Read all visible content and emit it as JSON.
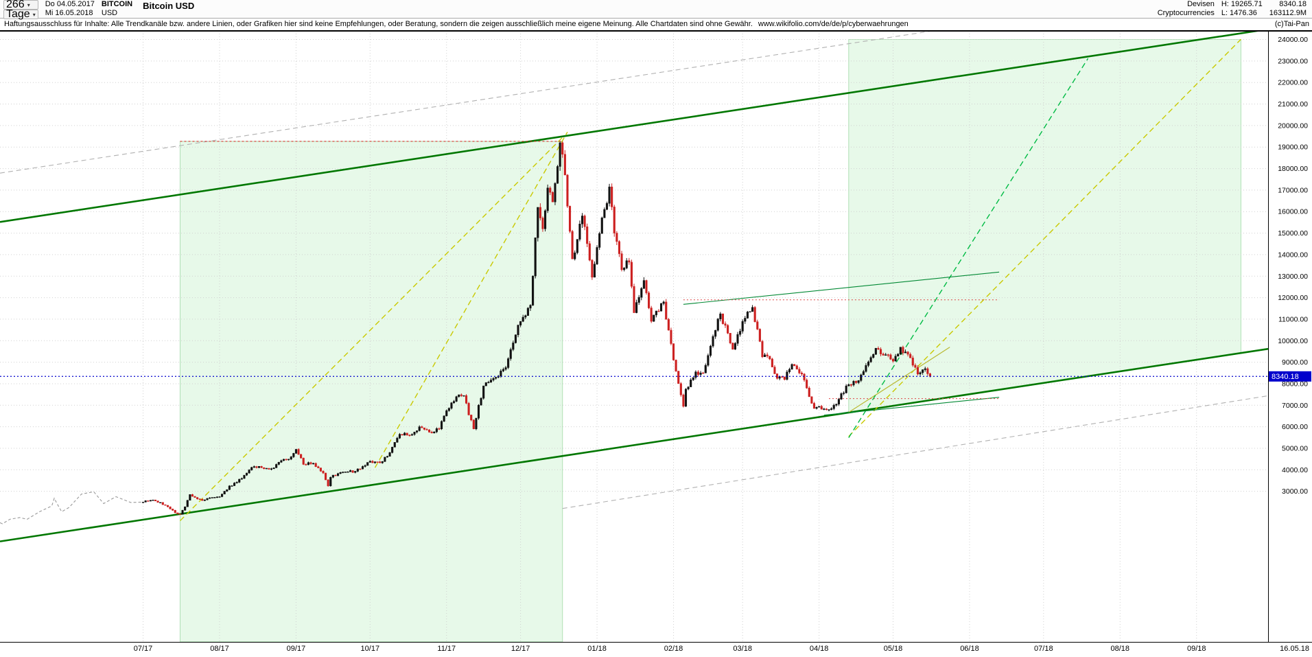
{
  "header": {
    "period_value": "266",
    "period_unit": "Tage",
    "date_from_label": "Do 04.05.2017",
    "date_to_label": "Mi 16.05.2018",
    "symbol": "BITCOIN",
    "currency": "USD",
    "title": "Bitcoin USD",
    "category_1": "Devisen",
    "category_2": "Cryptocurrencies",
    "high_label": "H: 19265.71",
    "low_label": "L: 1476.36",
    "last_price": "8340.18",
    "volume": "163112.9M"
  },
  "disclaimer": {
    "text": "Haftungsausschluss für Inhalte: Alle Trendkanäle bzw. andere Linien, oder Grafiken hier sind keine Empfehlungen, oder Beratung, sondern die zeigen ausschließlich meine eigene Meinung. Alle Chartdaten sind ohne Gewähr.",
    "link": "www.wikifolio.com/de/de/p/cyberwaehrungen",
    "copyright": "(c)Tai-Pan"
  },
  "footer": {
    "end_date": "16.05.18"
  },
  "chart_data": {
    "type": "candlestick",
    "title": "Bitcoin USD",
    "instrument": "BITCOIN USD",
    "period_start": "04.05.2017",
    "period_end": "16.05.2018",
    "high": 19265.71,
    "low": 1476.36,
    "last": 8340.18,
    "x_axis": {
      "total_days": 514,
      "candles_start_day": 58,
      "last_data_day": 377,
      "tick_labels": [
        "07/17",
        "08/17",
        "09/17",
        "10/17",
        "11/17",
        "12/17",
        "01/18",
        "02/18",
        "03/18",
        "04/18",
        "05/18",
        "06/18",
        "07/18",
        "08/18",
        "09/18"
      ],
      "tick_days": [
        58,
        89,
        120,
        150,
        181,
        211,
        242,
        273,
        301,
        332,
        362,
        393,
        423,
        454,
        485
      ]
    },
    "y_axis": {
      "min": -4000,
      "max": 24400,
      "label_min": 3000,
      "label_max": 24000,
      "step": 1000,
      "grid": true
    },
    "price_marker": {
      "value": 8340.18,
      "label": "8340.18",
      "color": "#0000cc"
    },
    "close_anchors": [
      [
        0,
        1540
      ],
      [
        1,
        1490
      ],
      [
        4,
        1700
      ],
      [
        8,
        1780
      ],
      [
        11,
        1700
      ],
      [
        16,
        2050
      ],
      [
        21,
        2320
      ],
      [
        22,
        2680
      ],
      [
        23,
        2450
      ],
      [
        25,
        2050
      ],
      [
        28,
        2250
      ],
      [
        33,
        2870
      ],
      [
        38,
        2980
      ],
      [
        42,
        2430
      ],
      [
        47,
        2750
      ],
      [
        53,
        2480
      ],
      [
        58,
        2500
      ],
      [
        62,
        2600
      ],
      [
        67,
        2350
      ],
      [
        71,
        2000
      ],
      [
        73,
        1930
      ],
      [
        75,
        2280
      ],
      [
        77,
        2850
      ],
      [
        82,
        2570
      ],
      [
        87,
        2720
      ],
      [
        89,
        2750
      ],
      [
        93,
        3250
      ],
      [
        96,
        3420
      ],
      [
        100,
        3850
      ],
      [
        103,
        4150
      ],
      [
        106,
        4100
      ],
      [
        110,
        4050
      ],
      [
        113,
        4350
      ],
      [
        118,
        4600
      ],
      [
        120,
        4950
      ],
      [
        123,
        4250
      ],
      [
        127,
        4300
      ],
      [
        131,
        3850
      ],
      [
        133,
        3250
      ],
      [
        134,
        3650
      ],
      [
        139,
        3900
      ],
      [
        144,
        3930
      ],
      [
        148,
        4200
      ],
      [
        150,
        4400
      ],
      [
        154,
        4320
      ],
      [
        158,
        4800
      ],
      [
        162,
        5650
      ],
      [
        166,
        5600
      ],
      [
        170,
        6000
      ],
      [
        174,
        5750
      ],
      [
        178,
        5900
      ],
      [
        181,
        6750
      ],
      [
        185,
        7400
      ],
      [
        188,
        7450
      ],
      [
        190,
        6550
      ],
      [
        192,
        5900
      ],
      [
        196,
        7900
      ],
      [
        200,
        8250
      ],
      [
        205,
        8750
      ],
      [
        208,
        9900
      ],
      [
        211,
        10900
      ],
      [
        215,
        11650
      ],
      [
        218,
        16200
      ],
      [
        220,
        15200
      ],
      [
        222,
        17100
      ],
      [
        224,
        16450
      ],
      [
        227,
        19200
      ],
      [
        229,
        17700
      ],
      [
        232,
        13800
      ],
      [
        236,
        15800
      ],
      [
        240,
        12950
      ],
      [
        243,
        14980
      ],
      [
        247,
        17150
      ],
      [
        249,
        15000
      ],
      [
        252,
        13300
      ],
      [
        255,
        13650
      ],
      [
        257,
        11300
      ],
      [
        261,
        12800
      ],
      [
        264,
        10900
      ],
      [
        269,
        11800
      ],
      [
        273,
        9100
      ],
      [
        277,
        6950
      ],
      [
        278,
        7750
      ],
      [
        282,
        8550
      ],
      [
        285,
        8500
      ],
      [
        289,
        10200
      ],
      [
        292,
        11250
      ],
      [
        297,
        9600
      ],
      [
        301,
        10900
      ],
      [
        305,
        11550
      ],
      [
        309,
        9250
      ],
      [
        312,
        9150
      ],
      [
        315,
        8250
      ],
      [
        318,
        8200
      ],
      [
        321,
        8900
      ],
      [
        325,
        8450
      ],
      [
        330,
        6850
      ],
      [
        332,
        6950
      ],
      [
        336,
        6800
      ],
      [
        339,
        7050
      ],
      [
        343,
        7900
      ],
      [
        347,
        8050
      ],
      [
        351,
        8850
      ],
      [
        355,
        9650
      ],
      [
        359,
        9350
      ],
      [
        362,
        9050
      ],
      [
        365,
        9700
      ],
      [
        369,
        9200
      ],
      [
        372,
        8450
      ],
      [
        375,
        8700
      ],
      [
        377,
        8340.18
      ]
    ],
    "regions": [
      {
        "name": "channel-zone-left",
        "points": [
          [
            73,
            19265.71
          ],
          [
            228,
            19265.71
          ],
          [
            228,
            -4000
          ],
          [
            73,
            -4000
          ]
        ],
        "fill": "rgba(144,226,154,0.22)",
        "stroke": "rgba(120,200,130,0.55)"
      },
      {
        "name": "projection-zone-right",
        "points": [
          [
            344,
            24000
          ],
          [
            503,
            24000
          ],
          [
            503,
            9420
          ],
          [
            344,
            6640
          ]
        ],
        "fill": "rgba(144,226,154,0.22)",
        "stroke": "rgba(120,200,130,0.55)"
      }
    ],
    "lines": [
      {
        "name": "trendchannel-upper",
        "color": "#007700",
        "width": 2.6,
        "dash": "",
        "p1": [
          0,
          15520
        ],
        "p2": [
          514,
          24480
        ]
      },
      {
        "name": "trendchannel-lower",
        "color": "#007700",
        "width": 2.6,
        "dash": "",
        "p1": [
          0,
          670
        ],
        "p2": [
          514,
          9620
        ]
      },
      {
        "name": "trendline-yellow-1",
        "color": "#c9c900",
        "width": 1.4,
        "dash": "8 5",
        "p1": [
          73,
          1630
        ],
        "p2": [
          228,
          19450
        ]
      },
      {
        "name": "trendline-yellow-2",
        "color": "#c9c900",
        "width": 1.4,
        "dash": "8 5",
        "p1": [
          152,
          4100
        ],
        "p2": [
          230,
          19700
        ]
      },
      {
        "name": "trendline-yellow-3",
        "color": "#c9c900",
        "width": 1.4,
        "dash": "8 5",
        "p1": [
          344,
          5550
        ],
        "p2": [
          503,
          24010
        ]
      },
      {
        "name": "trendline-yellow-4",
        "color": "#b9b933",
        "width": 1.2,
        "dash": "",
        "p1": [
          344,
          6670
        ],
        "p2": [
          385,
          9700
        ]
      },
      {
        "name": "trendline-green-dashed",
        "color": "#00bb44",
        "width": 1.4,
        "dash": "8 5",
        "p1": [
          344,
          5490
        ],
        "p2": [
          441,
          23120
        ]
      },
      {
        "name": "minor-trendline-green-1",
        "color": "#008833",
        "width": 1.1,
        "dash": "",
        "p1": [
          277,
          11690
        ],
        "p2": [
          405,
          13190
        ]
      },
      {
        "name": "minor-trendline-green-2",
        "color": "#008833",
        "width": 1.1,
        "dash": "",
        "p1": [
          334,
          6540
        ],
        "p2": [
          405,
          7370
        ]
      },
      {
        "name": "projection-gray-1",
        "color": "#b0b0b0",
        "width": 1.1,
        "dash": "7 5",
        "p1": [
          0,
          17790
        ],
        "p2": [
          378,
          24400
        ]
      },
      {
        "name": "projection-gray-2",
        "color": "#b0b0b0",
        "width": 1.1,
        "dash": "7 5",
        "p1": [
          228,
          2200
        ],
        "p2": [
          514,
          7440
        ]
      },
      {
        "name": "resistance-high-red",
        "color": "#dd2222",
        "width": 1,
        "dash": "3 3",
        "p1": [
          73,
          19265.71
        ],
        "p2": [
          228,
          19265.71
        ]
      },
      {
        "name": "resistance-mid-red",
        "color": "#dd4444",
        "width": 1,
        "dash": "2 3",
        "p1": [
          277,
          11900
        ],
        "p2": [
          405,
          11900
        ]
      },
      {
        "name": "support-low-red",
        "color": "#dd4444",
        "width": 1,
        "dash": "2 3",
        "p1": [
          336,
          7310
        ],
        "p2": [
          405,
          7310
        ]
      }
    ],
    "colors": {
      "candle_up": "#111111",
      "candle_down": "#cc2020",
      "pre_data_line": "#999999",
      "grid": "#d0d0d0",
      "current_price_line": "#0000cc"
    }
  }
}
